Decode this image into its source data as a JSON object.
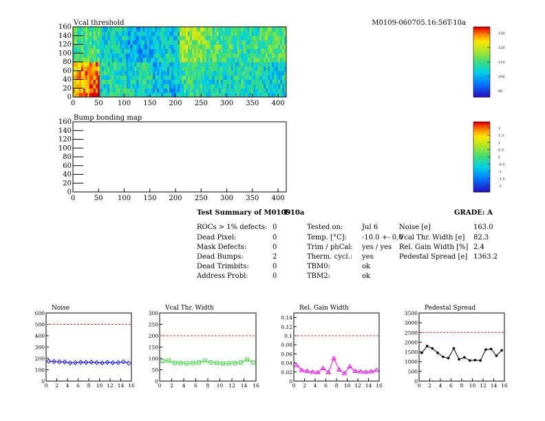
{
  "module_id": "M0109-060705.16:56T-10a",
  "vcal_map": {
    "title": "Vcal threshold",
    "xlim": [
      0,
      416
    ],
    "ylim": [
      0,
      160
    ],
    "xticks": [
      0,
      50,
      100,
      150,
      200,
      250,
      300,
      350,
      400
    ],
    "yticks": [
      0,
      20,
      40,
      60,
      80,
      100,
      120,
      140,
      160
    ],
    "palette_labels": [
      "130",
      "120",
      "110",
      "100",
      "90"
    ]
  },
  "bump_map": {
    "title": "Bump bonding map",
    "xlim": [
      0,
      416
    ],
    "ylim": [
      0,
      160
    ],
    "xticks": [
      0,
      50,
      100,
      150,
      200,
      250,
      300,
      350,
      400
    ],
    "yticks": [
      0,
      20,
      40,
      60,
      80,
      100,
      120,
      140,
      160
    ],
    "palette_labels": [
      "2",
      "1.5",
      "1",
      "0.5",
      "0",
      "-0.5",
      "-1",
      "-1.5",
      "-2"
    ]
  },
  "summary": {
    "title": "Test Summary of M0109",
    "test": "T-10a",
    "grade": "GRADE:  A",
    "defects": [
      {
        "label": "ROCs > 1% defects:",
        "value": "0"
      },
      {
        "label": "Dead Pixel:",
        "value": "0"
      },
      {
        "label": "Mask Defects:",
        "value": "0"
      },
      {
        "label": "Dead Bumps:",
        "value": "2"
      },
      {
        "label": "Dead Trimbits:",
        "value": "0"
      },
      {
        "label": "Address Probl:",
        "value": "0"
      }
    ],
    "conditions": [
      {
        "label": "Tested on:",
        "value": "Jul 6"
      },
      {
        "label": "Temp. [°C]:",
        "value": "-10.0 +- 0.0"
      },
      {
        "label": "Trim / phCal:",
        "value": "yes / yes"
      },
      {
        "label": "Therm. cycl.:",
        "value": "yes"
      },
      {
        "label": "TBM0:",
        "value": "ok"
      },
      {
        "label": "TBM2:",
        "value": "ok"
      }
    ],
    "results": [
      {
        "label": "Noise [e]",
        "value": "163.0"
      },
      {
        "label": "Vcal Thr. Width [e]",
        "value": "82.3"
      },
      {
        "label": "Rel. Gain Width [%]",
        "value": "2.4"
      },
      {
        "label": "Pedestal Spread [e]",
        "value": "1363.2"
      }
    ]
  },
  "chart_data": [
    {
      "type": "line",
      "title": "Noise",
      "x": [
        0,
        1,
        2,
        3,
        4,
        5,
        6,
        7,
        8,
        9,
        10,
        11,
        12,
        13,
        14,
        15
      ],
      "series": [
        {
          "values": [
            175,
            172,
            170,
            168,
            160,
            162,
            166,
            165,
            167,
            163,
            160,
            165,
            162,
            163,
            170,
            158
          ]
        }
      ],
      "xlim": [
        0,
        16
      ],
      "ylim": [
        0,
        600
      ],
      "xticks": [
        0,
        2,
        4,
        6,
        8,
        10,
        12,
        14,
        16
      ],
      "yticks": [
        0,
        100,
        200,
        300,
        400,
        500,
        600
      ],
      "ytick_labels": [
        "0",
        "100",
        "200",
        "300",
        "400",
        "500",
        "600"
      ],
      "limit": 500,
      "color": "#1a1aff",
      "marker": "diamond"
    },
    {
      "type": "line",
      "title": "Vcal Thr. Width",
      "x": [
        0,
        1,
        2,
        3,
        4,
        5,
        6,
        7,
        8,
        9,
        10,
        11,
        12,
        13,
        14,
        15
      ],
      "series": [
        {
          "values": [
            88,
            90,
            80,
            80,
            78,
            80,
            82,
            90,
            82,
            80,
            78,
            78,
            80,
            82,
            95,
            82
          ]
        }
      ],
      "xlim": [
        0,
        16
      ],
      "ylim": [
        0,
        300
      ],
      "xticks": [
        0,
        2,
        4,
        6,
        8,
        10,
        12,
        14,
        16
      ],
      "yticks": [
        0,
        50,
        100,
        150,
        200,
        250,
        300
      ],
      "ytick_labels": [
        "0",
        "50",
        "100",
        "150",
        "200",
        "250",
        "300"
      ],
      "limit": 200,
      "color": "#33dd33",
      "marker": "square"
    },
    {
      "type": "line",
      "title": "Rel. Gain Width",
      "x": [
        0,
        1,
        2,
        3,
        4,
        5,
        6,
        7,
        8,
        9,
        10,
        11,
        12,
        13,
        14,
        15
      ],
      "series": [
        {
          "values": [
            0.035,
            0.024,
            0.022,
            0.02,
            0.019,
            0.028,
            0.019,
            0.05,
            0.025,
            0.017,
            0.032,
            0.022,
            0.021,
            0.02,
            0.021,
            0.024
          ]
        }
      ],
      "xlim": [
        0,
        16
      ],
      "ylim": [
        0,
        0.15
      ],
      "xticks": [
        0,
        2,
        4,
        6,
        8,
        10,
        12,
        14,
        16
      ],
      "yticks": [
        0,
        0.02,
        0.04,
        0.06,
        0.08,
        0.1,
        0.12,
        0.14
      ],
      "ytick_labels": [
        "0",
        "0.02",
        "0.04",
        "0.06",
        "0.08",
        "0.1",
        "0.12",
        "0.14"
      ],
      "limit": 0.1,
      "color": "#ff00ff",
      "marker": "triangle"
    },
    {
      "type": "line",
      "title": "Pedestal Spread",
      "x": [
        0,
        1,
        2,
        3,
        4,
        5,
        6,
        7,
        8,
        9,
        10,
        11,
        12,
        13,
        14,
        15
      ],
      "series": [
        {
          "values": [
            1450,
            1800,
            1680,
            1450,
            1250,
            1180,
            1680,
            1120,
            1220,
            1060,
            1080,
            1060,
            1620,
            1650,
            1300,
            1580
          ]
        }
      ],
      "xlim": [
        0,
        16
      ],
      "ylim": [
        0,
        3500
      ],
      "xticks": [
        0,
        2,
        4,
        6,
        8,
        10,
        12,
        14,
        16
      ],
      "yticks": [
        0,
        500,
        1000,
        1500,
        2000,
        2500,
        3000,
        3500
      ],
      "ytick_labels": [
        "0",
        "500",
        "1000",
        "1500",
        "2000",
        "2500",
        "3000",
        "3500"
      ],
      "limit": 2500,
      "color": "#000000",
      "marker": "dot"
    }
  ]
}
